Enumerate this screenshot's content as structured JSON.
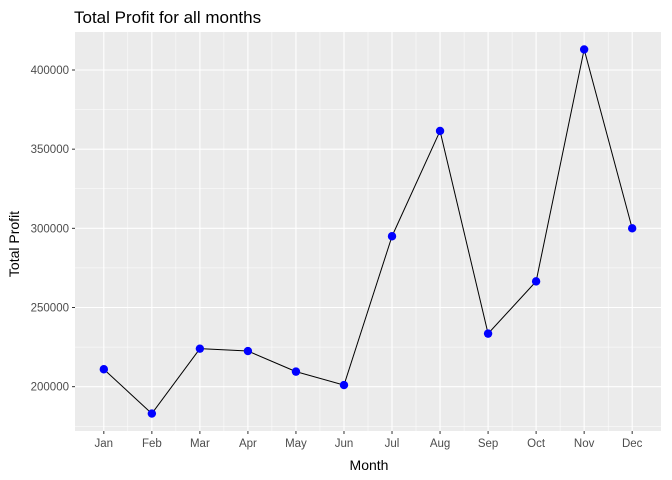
{
  "chart_data": {
    "type": "line",
    "title": "Total Profit for all months",
    "xlabel": "Month",
    "ylabel": "Total Profit",
    "categories": [
      "Jan",
      "Feb",
      "Mar",
      "Apr",
      "May",
      "Jun",
      "Jul",
      "Aug",
      "Sep",
      "Oct",
      "Nov",
      "Dec"
    ],
    "values": [
      211000,
      183000,
      224000,
      222500,
      209500,
      201000,
      295000,
      361500,
      233500,
      266500,
      413000,
      300000
    ],
    "ylim": [
      172000,
      424000
    ],
    "yticks": [
      200000,
      250000,
      300000,
      350000,
      400000
    ],
    "ytick_labels": [
      "200000",
      "250000",
      "300000",
      "350000",
      "400000"
    ],
    "grid": true,
    "legend": "none",
    "colors": {
      "panel_background": "#ebebeb",
      "grid": "#ffffff",
      "line": "#000000",
      "points": "#0000ff"
    }
  }
}
